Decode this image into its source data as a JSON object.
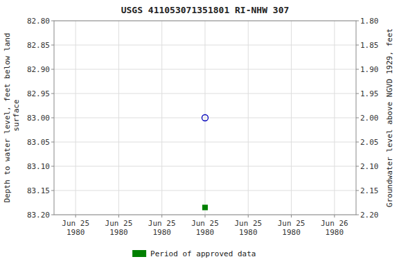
{
  "chart_data": {
    "type": "scatter",
    "title": "USGS 411053071351801 RI-NHW  307",
    "y_label": "Depth to water level, feet below land\n surface",
    "y2_label": "Groundwater level above NGVD 1929, feet",
    "categories": [
      "Jun 25\n1980",
      "Jun 25\n1980",
      "Jun 25\n1980",
      "Jun 25\n1980",
      "Jun 25\n1980",
      "Jun 25\n1980",
      "Jun 26\n1980"
    ],
    "ylim": [
      83.2,
      82.8
    ],
    "yticks": [
      {
        "value": 82.8,
        "label": "82.80"
      },
      82.85,
      {
        "value": 82.9,
        "label": "82.90"
      },
      82.95,
      {
        "value": 83.0,
        "label": "83.00"
      },
      83.05,
      {
        "value": 83.1,
        "label": "83.10"
      },
      83.15,
      {
        "value": 83.2,
        "label": "83.20"
      }
    ],
    "y2lim": [
      2.2,
      1.8
    ],
    "y2ticks": [
      {
        "value": 2.2,
        "label": "2.20"
      },
      2.15,
      {
        "value": 2.1,
        "label": "2.10"
      },
      2.05,
      {
        "value": 2.0,
        "label": "2.00"
      },
      1.95,
      {
        "value": 1.9,
        "label": "1.90"
      },
      1.85,
      {
        "value": 1.8,
        "label": "1.80"
      }
    ],
    "grid": true,
    "legend": "bottom",
    "series": [
      {
        "color": "#0000bb",
        "marker": "circle",
        "values": [
          null,
          null,
          null,
          83.0,
          null,
          null,
          null
        ]
      },
      {
        "name": "Period of approved data",
        "color": "#008000",
        "marker": "square",
        "values": [
          null,
          null,
          null,
          83.185,
          null,
          null,
          null
        ]
      }
    ]
  }
}
